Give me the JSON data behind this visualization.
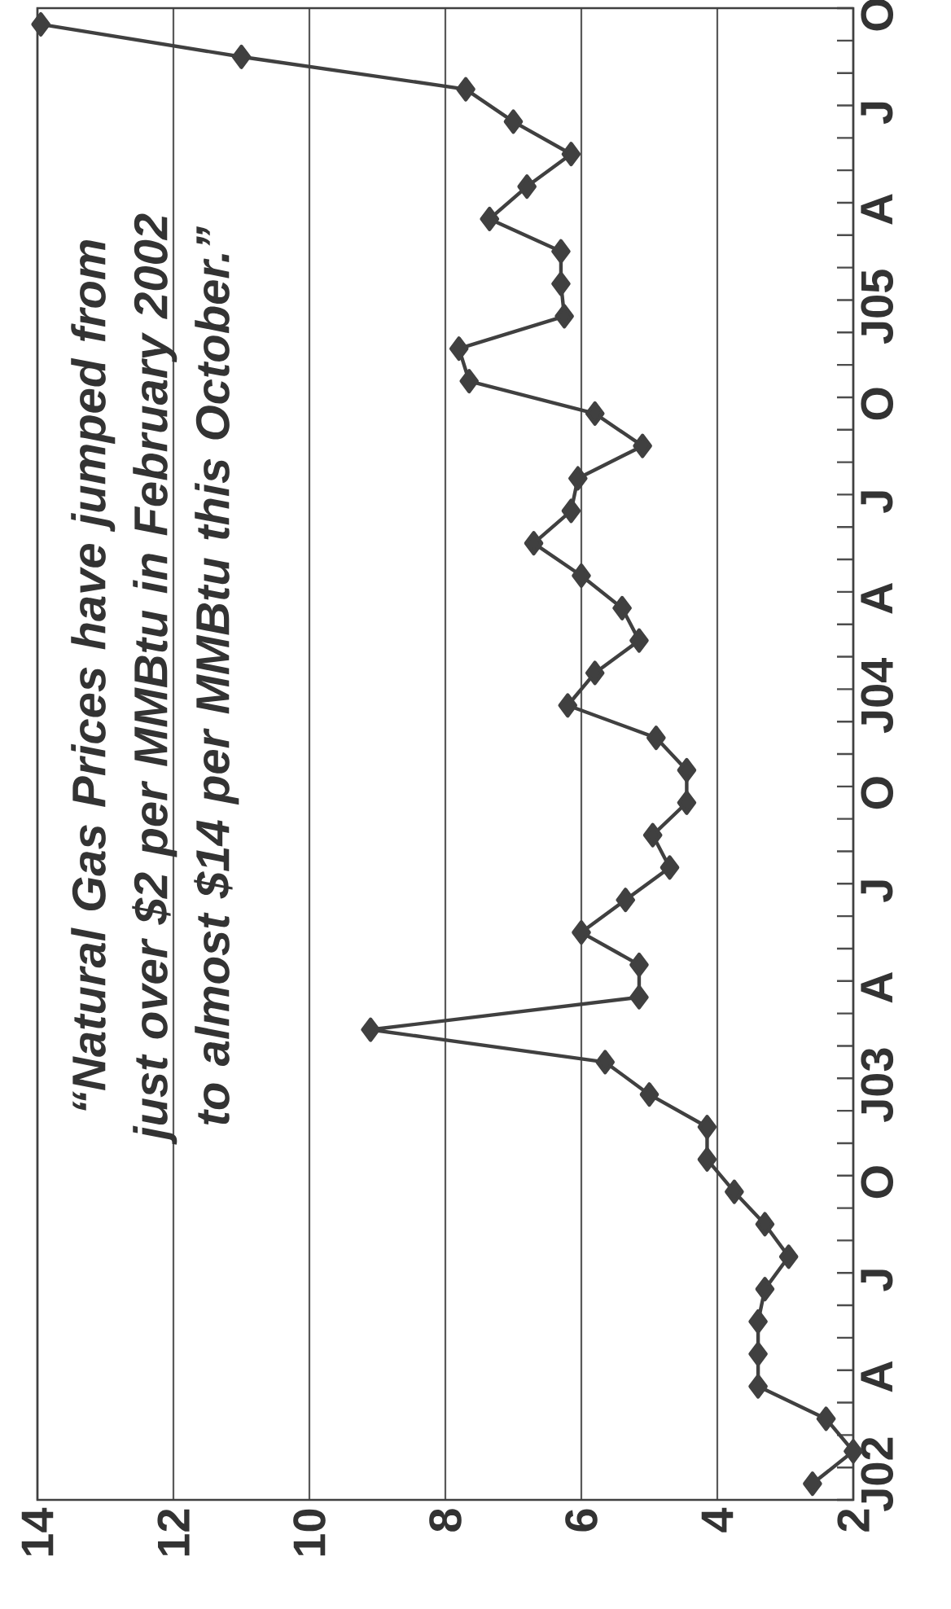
{
  "chart_data": {
    "type": "line",
    "orientation": "horizontal",
    "categories": [
      "O",
      null,
      null,
      "J",
      null,
      null,
      "A",
      null,
      null,
      "J05",
      null,
      null,
      "O",
      null,
      null,
      "J",
      null,
      null,
      "A",
      null,
      null,
      "J04",
      null,
      null,
      "O",
      null,
      null,
      "J",
      null,
      null,
      "A",
      null,
      null,
      "J03",
      null,
      null,
      "O",
      null,
      null,
      "J",
      null,
      null,
      "A",
      null,
      null,
      "J02"
    ],
    "values": [
      13.95,
      11.0,
      7.7,
      7.0,
      6.15,
      6.8,
      7.35,
      6.3,
      6.3,
      6.25,
      7.8,
      7.65,
      5.8,
      5.1,
      6.05,
      6.15,
      6.7,
      6.0,
      5.4,
      5.15,
      5.8,
      6.2,
      4.9,
      4.45,
      4.45,
      4.95,
      4.7,
      5.35,
      6.0,
      5.15,
      5.15,
      9.1,
      5.65,
      5.0,
      4.15,
      4.15,
      3.75,
      3.3,
      2.95,
      3.3,
      3.4,
      3.4,
      3.4,
      2.4,
      2.0,
      2.6
    ],
    "color": "#404040",
    "marker": "diamond",
    "xlim": [
      14,
      2
    ],
    "xticks": [
      14,
      12,
      10,
      8,
      6,
      4,
      2
    ],
    "grid": "x",
    "annotations": [
      "“Natural Gas Prices have jumped from just over $2 per MMBtu in February 2002 to almost $14 per MMBtu this October.”"
    ]
  }
}
